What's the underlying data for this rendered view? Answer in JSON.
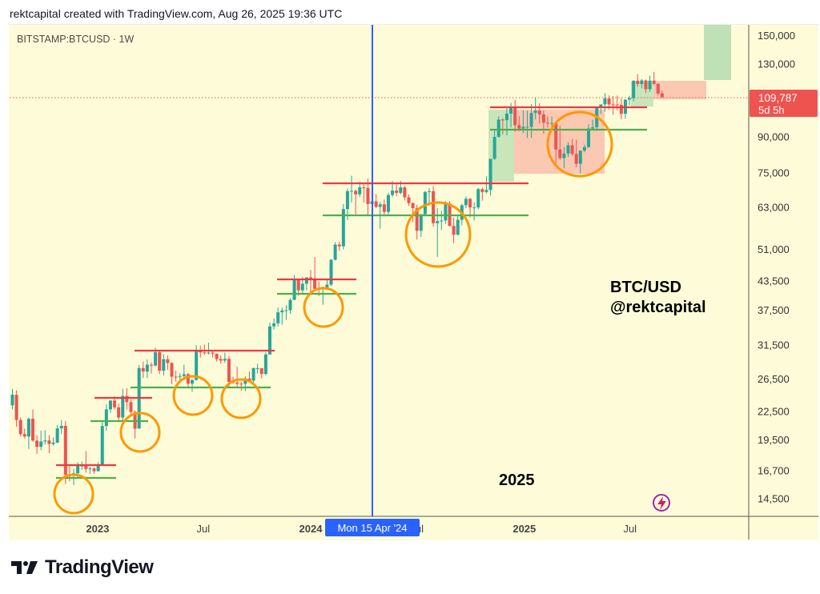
{
  "header": {
    "text": "rektcapital created with TradingView.com, Aug 26, 2025 19:36 UTC"
  },
  "symbol": {
    "label": "BITSTAMP:BTCUSD · 1W"
  },
  "crosshair": {
    "label": "Mon 15 Apr '24",
    "date": "2024-04-15",
    "color": "#2962ff"
  },
  "last_price": {
    "value": "109,787",
    "countdown": "5d 5h",
    "color": "#ef5350"
  },
  "annotations": {
    "pair": "BTC/USD",
    "handle": "@rektcapital",
    "year": "2025"
  },
  "logo": {
    "text": "TradingView"
  },
  "colors": {
    "background": "#fefcd8",
    "up": "#26a69a",
    "down": "#ef5350",
    "resistance": "#f23645",
    "support": "#4caf50",
    "circle": "#ff9800"
  },
  "chart_data": {
    "type": "candlestick",
    "title": "BITSTAMP:BTCUSD · 1W",
    "y_scale": "log",
    "ylim": [
      13500,
      165000
    ],
    "grid": false,
    "y_ticks": [
      150000,
      130000,
      90000,
      75000,
      63000,
      51000,
      43500,
      37500,
      31500,
      26500,
      22500,
      19500,
      16700,
      14500
    ],
    "y_tick_labels": [
      "150,000",
      "130,000",
      "90,000",
      "75,000",
      "63,000",
      "51,000",
      "43,500",
      "37,500",
      "31,500",
      "26,500",
      "22,500",
      "19,500",
      "16,700",
      "14,500"
    ],
    "x_ticks": [
      {
        "label": "2023",
        "date": "2023-01-01",
        "year": true
      },
      {
        "label": "Jul",
        "date": "2023-07-01",
        "year": false
      },
      {
        "label": "2024",
        "date": "2024-01-01",
        "year": true
      },
      {
        "label": "Jul",
        "date": "2024-07-01",
        "year": false
      },
      {
        "label": "2025",
        "date": "2025-01-01",
        "year": true
      },
      {
        "label": "Jul",
        "date": "2025-07-01",
        "year": false
      }
    ],
    "candles": [
      [
        "2022-08-08",
        23180,
        25200,
        22700,
        24440
      ],
      [
        "2022-08-15",
        24440,
        25000,
        20800,
        21520
      ],
      [
        "2022-08-22",
        21520,
        21800,
        19800,
        20040
      ],
      [
        "2022-08-29",
        20040,
        20600,
        19600,
        19800
      ],
      [
        "2022-09-05",
        19800,
        21800,
        18600,
        21650
      ],
      [
        "2022-09-12",
        21650,
        22700,
        19300,
        19400
      ],
      [
        "2022-09-19",
        19400,
        19950,
        18150,
        18800
      ],
      [
        "2022-09-26",
        18800,
        20400,
        18500,
        19310
      ],
      [
        "2022-10-03",
        19310,
        20450,
        19000,
        19410
      ],
      [
        "2022-10-10",
        19410,
        19950,
        18200,
        19060
      ],
      [
        "2022-10-17",
        19060,
        19700,
        18900,
        19200
      ],
      [
        "2022-10-24",
        19200,
        21000,
        19150,
        20630
      ],
      [
        "2022-10-31",
        20630,
        21500,
        20050,
        20900
      ],
      [
        "2022-11-07",
        20900,
        21400,
        15600,
        16330
      ],
      [
        "2022-11-14",
        16330,
        17200,
        15800,
        16280
      ],
      [
        "2022-11-21",
        16280,
        16800,
        15500,
        16450
      ],
      [
        "2022-11-28",
        16450,
        17400,
        16000,
        17100
      ],
      [
        "2022-12-05",
        17100,
        17450,
        16750,
        17100
      ],
      [
        "2022-12-12",
        17100,
        18400,
        16500,
        16800
      ],
      [
        "2022-12-19",
        16800,
        17000,
        16400,
        16850
      ],
      [
        "2022-12-26",
        16850,
        16950,
        16400,
        16620
      ],
      [
        "2023-01-02",
        16620,
        17400,
        16600,
        17150
      ],
      [
        "2023-01-09",
        17150,
        21300,
        17100,
        20880
      ],
      [
        "2023-01-16",
        20880,
        23300,
        20400,
        22700
      ],
      [
        "2023-01-23",
        22700,
        23800,
        22300,
        23740
      ],
      [
        "2023-01-30",
        23740,
        24250,
        22700,
        22940
      ],
      [
        "2023-02-06",
        22940,
        23400,
        21400,
        21790
      ],
      [
        "2023-02-13",
        21790,
        25200,
        21400,
        24300
      ],
      [
        "2023-02-20",
        24300,
        25250,
        22700,
        23550
      ],
      [
        "2023-02-27",
        23550,
        23900,
        21900,
        22400
      ],
      [
        "2023-03-06",
        22400,
        22600,
        19600,
        20600
      ],
      [
        "2023-03-13",
        20600,
        28400,
        20600,
        27970
      ],
      [
        "2023-03-20",
        27970,
        28900,
        26600,
        27480
      ],
      [
        "2023-03-27",
        27480,
        29200,
        26600,
        28450
      ],
      [
        "2023-04-03",
        28450,
        28800,
        27200,
        28320
      ],
      [
        "2023-04-10",
        28320,
        31000,
        28200,
        30300
      ],
      [
        "2023-04-17",
        30300,
        30500,
        27150,
        27590
      ],
      [
        "2023-04-24",
        27590,
        30000,
        26950,
        29240
      ],
      [
        "2023-05-01",
        29240,
        29800,
        27700,
        28700
      ],
      [
        "2023-05-08",
        28700,
        28800,
        25800,
        26780
      ],
      [
        "2023-05-15",
        26780,
        27600,
        26100,
        26750
      ],
      [
        "2023-05-22",
        26750,
        27300,
        25900,
        26860
      ],
      [
        "2023-05-29",
        26860,
        28450,
        26500,
        27110
      ],
      [
        "2023-06-05",
        27110,
        27300,
        25350,
        25850
      ],
      [
        "2023-06-12",
        25850,
        26400,
        24800,
        26340
      ],
      [
        "2023-06-19",
        26340,
        31400,
        26250,
        30500
      ],
      [
        "2023-06-26",
        30500,
        31300,
        29500,
        30270
      ],
      [
        "2023-07-03",
        30270,
        31500,
        29900,
        30170
      ],
      [
        "2023-07-10",
        30170,
        31800,
        29950,
        30230
      ],
      [
        "2023-07-17",
        30230,
        30400,
        29500,
        30080
      ],
      [
        "2023-07-24",
        30080,
        30050,
        28900,
        29280
      ],
      [
        "2023-07-31",
        29280,
        29800,
        28600,
        29050
      ],
      [
        "2023-08-07",
        29050,
        30250,
        28700,
        29300
      ],
      [
        "2023-08-14",
        29300,
        29700,
        25300,
        26100
      ],
      [
        "2023-08-21",
        26100,
        26800,
        25800,
        26000
      ],
      [
        "2023-08-28",
        26000,
        28150,
        25350,
        25840
      ],
      [
        "2023-09-04",
        25840,
        26100,
        24950,
        25830
      ],
      [
        "2023-09-11",
        25830,
        26850,
        24900,
        26530
      ],
      [
        "2023-09-18",
        26530,
        27500,
        26000,
        26250
      ],
      [
        "2023-09-25",
        26250,
        28050,
        26000,
        27950
      ],
      [
        "2023-10-02",
        27950,
        28600,
        27200,
        27950
      ],
      [
        "2023-10-09",
        27950,
        27950,
        26550,
        27150
      ],
      [
        "2023-10-16",
        27150,
        30300,
        26950,
        29950
      ],
      [
        "2023-10-23",
        29950,
        35200,
        29950,
        34520
      ],
      [
        "2023-10-30",
        34520,
        35950,
        33950,
        35050
      ],
      [
        "2023-11-06",
        35050,
        37950,
        34500,
        37050
      ],
      [
        "2023-11-13",
        37050,
        37950,
        34800,
        37400
      ],
      [
        "2023-11-20",
        37400,
        38400,
        35650,
        37450
      ],
      [
        "2023-11-27",
        37450,
        39750,
        36800,
        39450
      ],
      [
        "2023-12-04",
        39450,
        44750,
        39400,
        43800
      ],
      [
        "2023-12-11",
        43800,
        43800,
        40300,
        41400
      ],
      [
        "2023-12-18",
        41400,
        44300,
        40600,
        42800
      ],
      [
        "2023-12-25",
        42800,
        43800,
        41400,
        44200
      ],
      [
        "2024-01-01",
        44200,
        45900,
        40700,
        43950
      ],
      [
        "2024-01-08",
        43950,
        49000,
        41500,
        41700
      ],
      [
        "2024-01-15",
        41700,
        43300,
        40200,
        41600
      ],
      [
        "2024-01-22",
        41600,
        42200,
        38500,
        42050
      ],
      [
        "2024-01-29",
        42050,
        43850,
        41850,
        42600
      ],
      [
        "2024-02-05",
        42600,
        48500,
        42300,
        48300
      ],
      [
        "2024-02-12",
        48300,
        52800,
        48150,
        52150
      ],
      [
        "2024-02-19",
        52150,
        52900,
        50500,
        51700
      ],
      [
        "2024-02-26",
        51700,
        64000,
        50900,
        62400
      ],
      [
        "2024-03-04",
        62400,
        69200,
        59000,
        68300
      ],
      [
        "2024-03-11",
        68300,
        73800,
        64500,
        68400
      ],
      [
        "2024-03-18",
        68400,
        68900,
        60800,
        67200
      ],
      [
        "2024-03-25",
        67200,
        71700,
        66300,
        69600
      ],
      [
        "2024-04-01",
        69600,
        71300,
        64500,
        69400
      ],
      [
        "2024-04-08",
        69400,
        72800,
        60600,
        64000
      ],
      [
        "2024-04-15",
        64000,
        66800,
        59600,
        64900
      ],
      [
        "2024-04-22",
        64900,
        67300,
        62700,
        63100
      ],
      [
        "2024-04-29",
        63100,
        64700,
        56500,
        63900
      ],
      [
        "2024-05-06",
        63900,
        65500,
        60100,
        61500
      ],
      [
        "2024-05-13",
        61500,
        67700,
        60700,
        67000
      ],
      [
        "2024-05-20",
        67000,
        71900,
        66300,
        68500
      ],
      [
        "2024-05-27",
        68500,
        70600,
        66600,
        67700
      ],
      [
        "2024-06-03",
        67700,
        71900,
        67200,
        69600
      ],
      [
        "2024-06-10",
        69600,
        70100,
        65100,
        66200
      ],
      [
        "2024-06-17",
        66200,
        67200,
        63400,
        64300
      ],
      [
        "2024-06-24",
        64300,
        64500,
        58400,
        62700
      ],
      [
        "2024-07-01",
        62700,
        63800,
        53500,
        55900
      ],
      [
        "2024-07-08",
        55900,
        60800,
        54200,
        60800
      ],
      [
        "2024-07-15",
        60800,
        68400,
        60600,
        68000
      ],
      [
        "2024-07-22",
        68000,
        69400,
        63500,
        68300
      ],
      [
        "2024-07-29",
        68300,
        70000,
        57100,
        58100
      ],
      [
        "2024-08-05",
        58100,
        62700,
        49000,
        58700
      ],
      [
        "2024-08-12",
        58700,
        61800,
        56100,
        58900
      ],
      [
        "2024-08-19",
        58900,
        65000,
        57900,
        64200
      ],
      [
        "2024-08-26",
        64200,
        64900,
        57200,
        57300
      ],
      [
        "2024-09-02",
        57300,
        59800,
        52500,
        54800
      ],
      [
        "2024-09-09",
        54800,
        60600,
        54600,
        59100
      ],
      [
        "2024-09-16",
        59100,
        64100,
        57500,
        63600
      ],
      [
        "2024-09-23",
        63600,
        66500,
        62700,
        65700
      ],
      [
        "2024-09-30",
        65700,
        66000,
        59800,
        62900
      ],
      [
        "2024-10-07",
        62900,
        64500,
        58900,
        62900
      ],
      [
        "2024-10-14",
        62900,
        69400,
        62300,
        69000
      ],
      [
        "2024-10-21",
        69000,
        69500,
        65100,
        68000
      ],
      [
        "2024-10-28",
        68000,
        73600,
        67500,
        68700
      ],
      [
        "2024-11-04",
        68700,
        80300,
        66800,
        80400
      ],
      [
        "2024-11-11",
        80400,
        93500,
        80000,
        89800
      ],
      [
        "2024-11-18",
        89800,
        99600,
        89400,
        98000
      ],
      [
        "2024-11-25",
        98000,
        98800,
        90800,
        97700
      ],
      [
        "2024-12-02",
        97700,
        104000,
        90500,
        101000
      ],
      [
        "2024-12-09",
        101000,
        106600,
        94200,
        104500
      ],
      [
        "2024-12-16",
        104500,
        108300,
        92200,
        95300
      ],
      [
        "2024-12-23",
        95300,
        99800,
        92500,
        93700
      ],
      [
        "2024-12-30",
        93700,
        102700,
        91500,
        94500
      ],
      [
        "2025-01-06",
        94500,
        102500,
        89300,
        94500
      ],
      [
        "2025-01-13",
        94500,
        106000,
        89300,
        101300
      ],
      [
        "2025-01-20",
        101300,
        109300,
        98100,
        102600
      ],
      [
        "2025-01-27",
        102600,
        106400,
        96000,
        100600
      ],
      [
        "2025-02-03",
        100600,
        102500,
        91200,
        96500
      ],
      [
        "2025-02-10",
        96500,
        99500,
        94100,
        96100
      ],
      [
        "2025-02-17",
        96100,
        99500,
        93400,
        96300
      ],
      [
        "2025-02-24",
        96300,
        96500,
        78200,
        84300
      ],
      [
        "2025-03-03",
        84300,
        95000,
        80000,
        80700
      ],
      [
        "2025-03-10",
        80700,
        85300,
        76600,
        82600
      ],
      [
        "2025-03-17",
        82600,
        87500,
        81200,
        86100
      ],
      [
        "2025-03-24",
        86100,
        88800,
        81600,
        82400
      ],
      [
        "2025-03-31",
        82400,
        88500,
        77100,
        78400
      ],
      [
        "2025-04-07",
        78400,
        83500,
        74500,
        83800
      ],
      [
        "2025-04-14",
        83800,
        86400,
        83100,
        85300
      ],
      [
        "2025-04-21",
        85300,
        95700,
        85000,
        93700
      ],
      [
        "2025-04-28",
        93700,
        97900,
        92800,
        94300
      ],
      [
        "2025-05-05",
        94300,
        104300,
        93400,
        104600
      ],
      [
        "2025-05-12",
        104600,
        105800,
        100800,
        105800
      ],
      [
        "2025-05-19",
        105800,
        112000,
        102000,
        109000
      ],
      [
        "2025-05-26",
        109000,
        110700,
        103100,
        105800
      ],
      [
        "2025-06-02",
        105800,
        110300,
        100400,
        105700
      ],
      [
        "2025-06-09",
        105700,
        110600,
        102700,
        105600
      ],
      [
        "2025-06-16",
        105600,
        108900,
        98200,
        100900
      ],
      [
        "2025-06-23",
        100900,
        108500,
        98400,
        108400
      ],
      [
        "2025-06-30",
        108400,
        110500,
        105300,
        109200
      ],
      [
        "2025-07-07",
        109200,
        119500,
        107500,
        119200
      ],
      [
        "2025-07-14",
        119200,
        123200,
        115700,
        117300
      ],
      [
        "2025-07-21",
        117300,
        120200,
        114700,
        119400
      ],
      [
        "2025-07-28",
        119400,
        119900,
        112000,
        114200
      ],
      [
        "2025-08-04",
        114200,
        122300,
        112700,
        119300
      ],
      [
        "2025-08-11",
        119300,
        124500,
        116800,
        117400
      ],
      [
        "2025-08-18",
        117400,
        117600,
        110700,
        111800
      ],
      [
        "2025-08-25",
        111800,
        113400,
        109300,
        109787
      ]
    ]
  }
}
